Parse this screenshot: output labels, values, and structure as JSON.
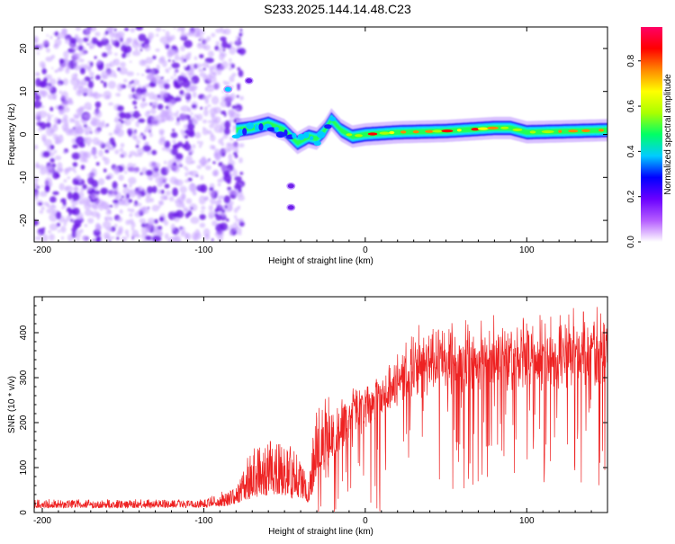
{
  "title": "S233.2025.144.14.48.C23",
  "colors": {
    "snr_line": "#ee2222",
    "axis": "#000000",
    "spec_low": "#c9a6ff",
    "spec_mid": "#6f1fe8",
    "colorbar": [
      "#ffffff",
      "#b45cff",
      "#6a00ff",
      "#0000ff",
      "#00ccff",
      "#00ff66",
      "#aaff00",
      "#ffff00",
      "#ff8800",
      "#ff0000",
      "#ff0066"
    ]
  },
  "chart_data": [
    {
      "type": "heatmap",
      "title": "",
      "xlabel": "Height of straight line (km)",
      "ylabel": "Frequency (Hz)",
      "xlim": [
        -205,
        150
      ],
      "ylim": [
        -25,
        25
      ],
      "x_ticks": [
        -200,
        -100,
        0,
        100
      ],
      "y_ticks": [
        -20,
        -10,
        0,
        10,
        20
      ],
      "colorbar": {
        "label": "Normalized spectral amplitude",
        "range": [
          0,
          0.95
        ],
        "ticks": [
          0.0,
          0.2,
          0.4,
          0.6,
          0.8
        ]
      },
      "noise_region": {
        "x_range": [
          -205,
          -80
        ],
        "freq_range": [
          -25,
          25
        ]
      },
      "tone_track": [
        {
          "x": -80,
          "f": 1.0
        },
        {
          "x": -70,
          "f": 1.5
        },
        {
          "x": -60,
          "f": 2.5
        },
        {
          "x": -50,
          "f": 1.0
        },
        {
          "x": -42,
          "f": -2.0
        },
        {
          "x": -35,
          "f": -0.5
        },
        {
          "x": -30,
          "f": -1.0
        },
        {
          "x": -25,
          "f": 1.0
        },
        {
          "x": -21,
          "f": 3.5
        },
        {
          "x": -15,
          "f": 1.0
        },
        {
          "x": -8,
          "f": -0.5
        },
        {
          "x": 0,
          "f": 0.0
        },
        {
          "x": 20,
          "f": 0.5
        },
        {
          "x": 50,
          "f": 0.8
        },
        {
          "x": 80,
          "f": 1.5
        },
        {
          "x": 90,
          "f": 1.5
        },
        {
          "x": 100,
          "f": 0.5
        },
        {
          "x": 150,
          "f": 1.0
        }
      ],
      "side_features": [
        {
          "x": -85,
          "f": 10.5,
          "value": 0.4
        },
        {
          "x": -72,
          "f": 12.5,
          "value": 0.1
        },
        {
          "x": -46,
          "f": -12.0,
          "value": 0.1
        },
        {
          "x": -46,
          "f": -17.0,
          "value": 0.1
        }
      ]
    },
    {
      "type": "line",
      "title": "",
      "xlabel": "Height of straight line (km)",
      "ylabel": "SNR (10 * v/v)",
      "xlim": [
        -205,
        150
      ],
      "ylim": [
        0,
        480
      ],
      "x_ticks": [
        -200,
        -100,
        0,
        100
      ],
      "y_ticks": [
        0,
        100,
        200,
        300,
        400
      ],
      "series": [
        {
          "envelope": [
            {
              "x": -205,
              "base": 12,
              "peak": 30
            },
            {
              "x": -150,
              "base": 12,
              "peak": 30
            },
            {
              "x": -100,
              "base": 13,
              "peak": 30
            },
            {
              "x": -80,
              "base": 20,
              "peak": 60
            },
            {
              "x": -70,
              "base": 40,
              "peak": 150
            },
            {
              "x": -60,
              "base": 50,
              "peak": 170
            },
            {
              "x": -45,
              "base": 40,
              "peak": 150
            },
            {
              "x": -35,
              "base": 25,
              "peak": 80
            },
            {
              "x": -30,
              "base": 90,
              "peak": 250
            },
            {
              "x": -20,
              "base": 140,
              "peak": 270
            },
            {
              "x": -10,
              "base": 200,
              "peak": 280
            },
            {
              "x": 0,
              "base": 240,
              "peak": 310
            },
            {
              "x": 10,
              "base": 280,
              "peak": 340
            },
            {
              "x": 20,
              "base": 310,
              "peak": 380
            },
            {
              "x": 30,
              "base": 330,
              "peak": 420
            },
            {
              "x": 50,
              "base": 345,
              "peak": 430
            },
            {
              "x": 80,
              "base": 355,
              "peak": 440
            },
            {
              "x": 110,
              "base": 355,
              "peak": 450
            },
            {
              "x": 130,
              "base": 360,
              "peak": 465
            },
            {
              "x": 150,
              "base": 360,
              "peak": 470
            }
          ]
        }
      ]
    }
  ]
}
